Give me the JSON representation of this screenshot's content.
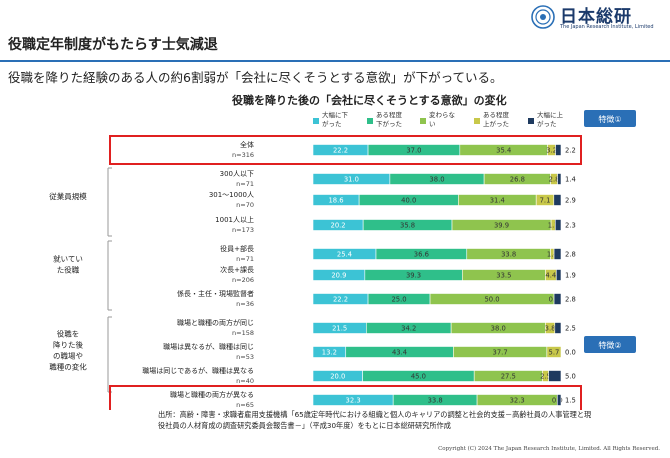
{
  "header": {
    "logo_name": "日本総研",
    "logo_sub": "The Japan Research Institute, Limited",
    "title": "役職定年制度がもたらす士気減退",
    "lead": "役職を降りた経験のある人の約6割弱が「会社に尽くそうとする意欲」が下がっている。"
  },
  "chart_data": {
    "type": "bar",
    "stacked": "100%",
    "orientation": "horizontal",
    "title": "役職を降りた後の「会社に尽くそうとする意欲」の変化",
    "legend": [
      {
        "label": "大幅に下がった",
        "color": "#3cc3d5"
      },
      {
        "label": "ある程度下がった",
        "color": "#2fbf8a"
      },
      {
        "label": "変わらない",
        "color": "#8fc44e"
      },
      {
        "label": "ある程度上がった",
        "color": "#c8c84a"
      },
      {
        "label": "大幅に上がった",
        "color": "#1e3a5f"
      }
    ],
    "groups": [
      {
        "label": "",
        "rows": [
          {
            "label": "全体",
            "n": "n=316",
            "values": [
              22.2,
              37.0,
              35.4,
              3.2,
              2.2
            ],
            "highlight": "特徴①"
          }
        ]
      },
      {
        "label": "従業員規模",
        "rows": [
          {
            "label": "300人以下",
            "n": "n=71",
            "values": [
              31.0,
              38.0,
              26.8,
              2.8,
              1.4
            ]
          },
          {
            "label": "301～1000人",
            "n": "n=70",
            "values": [
              18.6,
              40.0,
              31.4,
              7.1,
              2.9
            ]
          },
          {
            "label": "1001人以上",
            "n": "n=173",
            "values": [
              20.2,
              35.8,
              39.9,
              1.7,
              2.3
            ]
          }
        ]
      },
      {
        "label": "就いていた役職",
        "rows": [
          {
            "label": "役員+部長",
            "n": "n=71",
            "values": [
              25.4,
              36.6,
              33.8,
              1.4,
              2.8
            ]
          },
          {
            "label": "次長+課長",
            "n": "n=206",
            "values": [
              20.9,
              39.3,
              33.5,
              4.4,
              1.9
            ]
          },
          {
            "label": "係長・主任・現場監督者",
            "n": "n=36",
            "values": [
              22.2,
              25.0,
              50.0,
              0.0,
              2.8
            ]
          }
        ]
      },
      {
        "label": "役職を降りた後の職場や職種の変化",
        "rows": [
          {
            "label": "職場と職種の両方が同じ",
            "n": "n=158",
            "values": [
              21.5,
              34.2,
              38.0,
              3.8,
              2.5
            ]
          },
          {
            "label": "職場は異なるが、職種は同じ",
            "n": "n=53",
            "values": [
              13.2,
              43.4,
              37.7,
              5.7,
              0.0
            ]
          },
          {
            "label": "職場は同じであるが、職種は異なる",
            "n": "n=40",
            "values": [
              20.0,
              45.0,
              27.5,
              2.5,
              5.0
            ]
          },
          {
            "label": "職場と職種の両方が異なる",
            "n": "n=65",
            "values": [
              32.3,
              33.8,
              32.3,
              0.0,
              1.5
            ],
            "highlight": "特徴②"
          }
        ]
      }
    ]
  },
  "footer": {
    "source": "出所：高齢・障害・求職者雇用支援機構「65歳定年時代における組織と個人のキャリアの調整と社会的支援－高齢社員の人事管理と現役社員の人材育成の調査研究委員会報告書－」（平成30年度）をもとに日本総研研究所作成",
    "copyright": "Copyright (C) 2024  The Japan Research Institute, Limited. All Rights Reserved."
  }
}
